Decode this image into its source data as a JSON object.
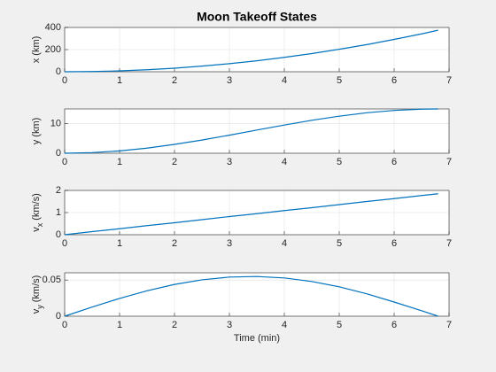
{
  "chart_data": [
    {
      "type": "line",
      "title": "Moon Takeoff States",
      "ylabel": "x (km)",
      "x": [
        0,
        0.5,
        1,
        1.5,
        2,
        2.5,
        3,
        3.5,
        4,
        4.5,
        5,
        5.5,
        6,
        6.5,
        6.8
      ],
      "series": [
        {
          "color": "#0072bd",
          "values": [
            0,
            2,
            8,
            18,
            32,
            51,
            73,
            99,
            130,
            164,
            203,
            245,
            292,
            342,
            375
          ]
        }
      ],
      "xlim": [
        0,
        7
      ],
      "xticks": [
        0,
        1,
        2,
        3,
        4,
        5,
        6,
        7
      ],
      "ylim": [
        0,
        400
      ],
      "yticks": [
        0,
        200,
        400
      ],
      "grid": true
    },
    {
      "type": "line",
      "ylabel": "y (km)",
      "x": [
        0,
        0.5,
        1,
        1.5,
        2,
        2.5,
        3,
        3.5,
        4,
        4.5,
        5,
        5.5,
        6,
        6.5,
        6.8
      ],
      "series": [
        {
          "color": "#0072bd",
          "values": [
            0,
            0.2,
            0.79,
            1.73,
            2.99,
            4.47,
            6.12,
            7.85,
            9.55,
            11.15,
            12.55,
            13.7,
            14.5,
            14.93,
            15
          ]
        }
      ],
      "xlim": [
        0,
        7
      ],
      "xticks": [
        0,
        1,
        2,
        3,
        4,
        5,
        6,
        7
      ],
      "ylim": [
        0,
        15
      ],
      "yticks": [
        0,
        10
      ],
      "grid": true
    },
    {
      "type": "line",
      "ylabel": "v_x (km/s)",
      "x": [
        0,
        0.5,
        1,
        1.5,
        2,
        2.5,
        3,
        3.5,
        4,
        4.5,
        5,
        5.5,
        6,
        6.5,
        6.8
      ],
      "series": [
        {
          "color": "#0072bd",
          "values": [
            0,
            0.14,
            0.27,
            0.41,
            0.54,
            0.68,
            0.82,
            0.95,
            1.09,
            1.22,
            1.36,
            1.5,
            1.63,
            1.77,
            1.85
          ]
        }
      ],
      "xlim": [
        0,
        7
      ],
      "xticks": [
        0,
        1,
        2,
        3,
        4,
        5,
        6,
        7
      ],
      "ylim": [
        0,
        2
      ],
      "yticks": [
        0,
        1,
        2
      ],
      "grid": true
    },
    {
      "type": "line",
      "ylabel": "v_y (km/s)",
      "xlabel": "Time (min)",
      "x": [
        0,
        0.5,
        1,
        1.5,
        2,
        2.5,
        3,
        3.5,
        4,
        4.5,
        5,
        5.5,
        6,
        6.5,
        6.8
      ],
      "series": [
        {
          "color": "#0072bd",
          "values": [
            0,
            0.0126,
            0.0246,
            0.0351,
            0.0439,
            0.0503,
            0.0541,
            0.0549,
            0.0529,
            0.048,
            0.0406,
            0.031,
            0.0196,
            0.0076,
            0
          ]
        }
      ],
      "xlim": [
        0,
        7
      ],
      "xticks": [
        0,
        1,
        2,
        3,
        4,
        5,
        6,
        7
      ],
      "ylim": [
        0,
        0.06
      ],
      "yticks": [
        0,
        0.05
      ],
      "grid": true
    }
  ]
}
